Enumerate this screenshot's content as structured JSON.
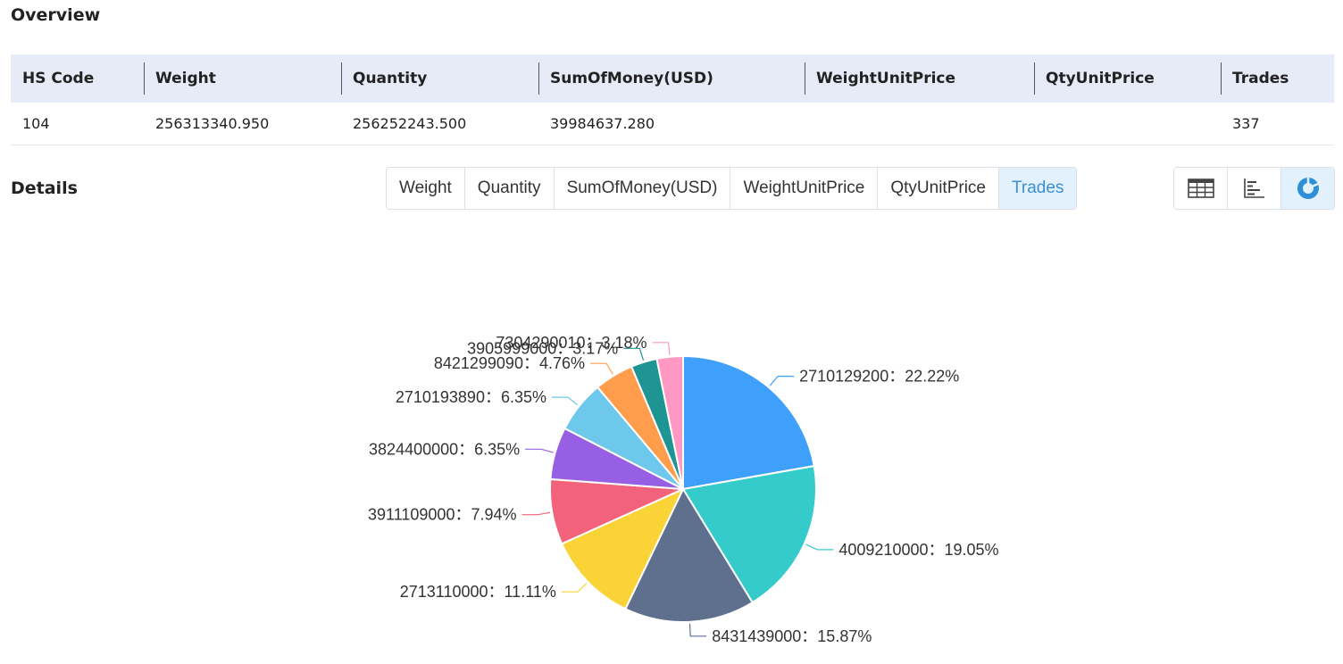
{
  "overview": {
    "title": "Overview",
    "headers": [
      "HS Code",
      "Weight",
      "Quantity",
      "SumOfMoney(USD)",
      "WeightUnitPrice",
      "QtyUnitPrice",
      "Trades"
    ],
    "row": [
      "104",
      "256313340.950",
      "256252243.500",
      "39984637.280",
      "",
      "",
      "337"
    ]
  },
  "details": {
    "title": "Details",
    "tabs": [
      "Weight",
      "Quantity",
      "SumOfMoney(USD)",
      "WeightUnitPrice",
      "QtyUnitPrice",
      "Trades"
    ],
    "active_tab": "Trades",
    "view_icons": [
      "table-icon",
      "bar-chart-icon",
      "pie-chart-icon"
    ],
    "active_view": "pie-chart-icon"
  },
  "chart_data": {
    "type": "pie",
    "categories": [
      "2710129200",
      "4009210000",
      "8431439000",
      "2713110000",
      "3911109000",
      "3824400000",
      "2710193890",
      "8421299090",
      "3905999000",
      "7304290010"
    ],
    "values": [
      22.22,
      19.05,
      15.87,
      11.11,
      7.94,
      6.35,
      6.35,
      4.76,
      3.17,
      3.18
    ],
    "labels": [
      "2710129200：22.22%",
      "4009210000：19.05%",
      "8431439000：15.87%",
      "2713110000：11.11%",
      "3911109000：7.94%",
      "3824400000：6.35%",
      "2710193890：6.35%",
      "8421299090：4.76%",
      "3905999000：3.17%",
      "7304290010：3.18%"
    ],
    "colors": [
      "#3fa0fc",
      "#36cbcb",
      "#5f708f",
      "#fad337",
      "#f2637b",
      "#9760e4",
      "#6dc8ec",
      "#ff9d4d",
      "#1e9493",
      "#ff99c3"
    ],
    "legend": "none"
  }
}
